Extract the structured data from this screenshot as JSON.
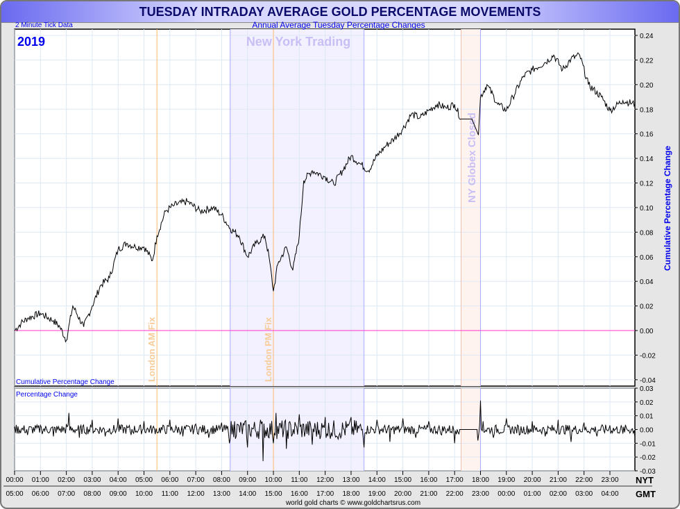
{
  "title": "TUESDAY INTRADAY AVERAGE GOLD PERCENTAGE MOVEMENTS",
  "subtitle": "Annual Average Tuesday Percentage Changes",
  "tick_note": "2 Minute Tick Data",
  "year": "2019",
  "footer": "world gold charts © www.goldchartsrus.com",
  "chart_data": [
    {
      "type": "line",
      "title": "Cumulative Percentage Change",
      "ylabel": "Cumulative Percentage Change",
      "ylim": [
        -0.045,
        0.245
      ],
      "yticks": [
        0.24,
        0.22,
        0.2,
        0.18,
        0.16,
        0.14,
        0.12,
        0.1,
        0.08,
        0.06,
        0.04,
        0.02,
        0.0,
        -0.02,
        -0.04
      ],
      "x": [
        0,
        0.25,
        0.5,
        1,
        1.5,
        1.75,
        2,
        2.25,
        2.67,
        3,
        3.33,
        3.67,
        4,
        4.33,
        4.67,
        5,
        5.33,
        5.5,
        5.83,
        6.17,
        6.67,
        7.17,
        7.67,
        8,
        8.33,
        8.67,
        9,
        9.33,
        9.67,
        9.83,
        10,
        10.17,
        10.5,
        10.75,
        11,
        11.17,
        11.5,
        12,
        12.33,
        12.67,
        13,
        13.33,
        13.67,
        14,
        14.33,
        14.67,
        15,
        15.33,
        15.67,
        16,
        16.33,
        16.67,
        17,
        17.25,
        17.67,
        17.92,
        18,
        18.25,
        18.67,
        19,
        19.25,
        19.67,
        20,
        20.5,
        20.83,
        21.17,
        21.5,
        21.83,
        22.17,
        22.67,
        23,
        23.5,
        23.97
      ],
      "values": [
        0,
        0.006,
        0.01,
        0.014,
        0.008,
        0.003,
        -0.008,
        0.02,
        0.003,
        0.02,
        0.037,
        0.043,
        0.066,
        0.071,
        0.068,
        0.068,
        0.057,
        0.077,
        0.097,
        0.102,
        0.105,
        0.097,
        0.1,
        0.094,
        0.083,
        0.077,
        0.06,
        0.071,
        0.077,
        0.06,
        0.032,
        0.054,
        0.068,
        0.049,
        0.077,
        0.122,
        0.13,
        0.125,
        0.119,
        0.13,
        0.142,
        0.136,
        0.13,
        0.142,
        0.15,
        0.156,
        0.164,
        0.176,
        0.173,
        0.179,
        0.184,
        0.181,
        0.184,
        0.172,
        0.172,
        0.159,
        0.19,
        0.2,
        0.184,
        0.179,
        0.19,
        0.207,
        0.212,
        0.218,
        0.224,
        0.212,
        0.221,
        0.224,
        0.2,
        0.19,
        0.179,
        0.187,
        0.184
      ]
    },
    {
      "type": "line",
      "title": "Percentage Change",
      "ylim": [
        -0.03,
        0.03
      ],
      "yticks": [
        0.03,
        0.02,
        0.01,
        0.0,
        -0.01,
        -0.02,
        -0.03
      ],
      "x": [
        0,
        0.5,
        1,
        1.5,
        2,
        2.1,
        2.5,
        3,
        3.5,
        4,
        4.5,
        5,
        5.5,
        6,
        6.5,
        7,
        7.5,
        8,
        8.3,
        8.5,
        9,
        9.5,
        9.6,
        10,
        10.1,
        10.5,
        11,
        11.5,
        12,
        12.5,
        13,
        13.5,
        14,
        14.5,
        15,
        15.5,
        16,
        16.5,
        17,
        17.1,
        17.3,
        17.5,
        17.8,
        17.9,
        18,
        18.1,
        18.5,
        19,
        19.5,
        20,
        20.5,
        21,
        21.5,
        22,
        22.5,
        23,
        23.5,
        23.97
      ],
      "values": [
        0.002,
        -0.004,
        0.003,
        -0.005,
        0.004,
        0.012,
        -0.006,
        0.007,
        -0.005,
        0.008,
        -0.004,
        0.006,
        -0.002,
        0.007,
        -0.005,
        0.004,
        -0.006,
        0.005,
        -0.01,
        0.006,
        -0.013,
        0.007,
        -0.023,
        -0.01,
        0.012,
        -0.014,
        0.011,
        -0.011,
        0.009,
        -0.007,
        0.009,
        -0.013,
        0.007,
        -0.009,
        0.008,
        -0.006,
        0.006,
        -0.004,
        -0.01,
        0,
        0,
        0,
        0,
        -0.008,
        0.021,
        0.006,
        -0.006,
        0.008,
        -0.004,
        0.006,
        -0.005,
        0.007,
        -0.009,
        0.005,
        -0.005,
        0.003,
        -0.003,
        -0.006
      ]
    }
  ],
  "right_axis_label": "Cumulative Percentage Change",
  "bottom_panel_label": "Percentage Change",
  "top_panel_label": "Cumulative Percentage Change",
  "regions": {
    "ny": "New York Trading",
    "globex": "NY Globex Closed",
    "am_fix": "London AM Fix",
    "pm_fix": "London PM Fix"
  },
  "nyt_label": "NYT",
  "gmt_label": "GMT",
  "nyt_ticks": [
    "00:00",
    "01:00",
    "02:00",
    "03:00",
    "04:00",
    "05:00",
    "06:00",
    "07:00",
    "08:00",
    "09:00",
    "10:00",
    "11:00",
    "12:00",
    "13:00",
    "14:00",
    "15:00",
    "16:00",
    "17:00",
    "18:00",
    "19:00",
    "20:00",
    "21:00",
    "22:00",
    "23:00"
  ],
  "gmt_ticks": [
    "05:00",
    "06:00",
    "07:00",
    "08:00",
    "09:00",
    "10:00",
    "11:00",
    "12:00",
    "13:00",
    "14:00",
    "15:00",
    "16:00",
    "17:00",
    "18:00",
    "19:00",
    "20:00",
    "21:00",
    "22:00",
    "23:00",
    "00:00",
    "01:00",
    "02:00",
    "03:00",
    "04:00"
  ],
  "colors": {
    "zero": "#ff33cc",
    "fix": "#ffbb66",
    "ny_fill": "#f3f0ff",
    "ny_edge": "#aaaaff",
    "globex_fill": "#fff3f0",
    "line": "#000000",
    "label": "#0000ee"
  }
}
